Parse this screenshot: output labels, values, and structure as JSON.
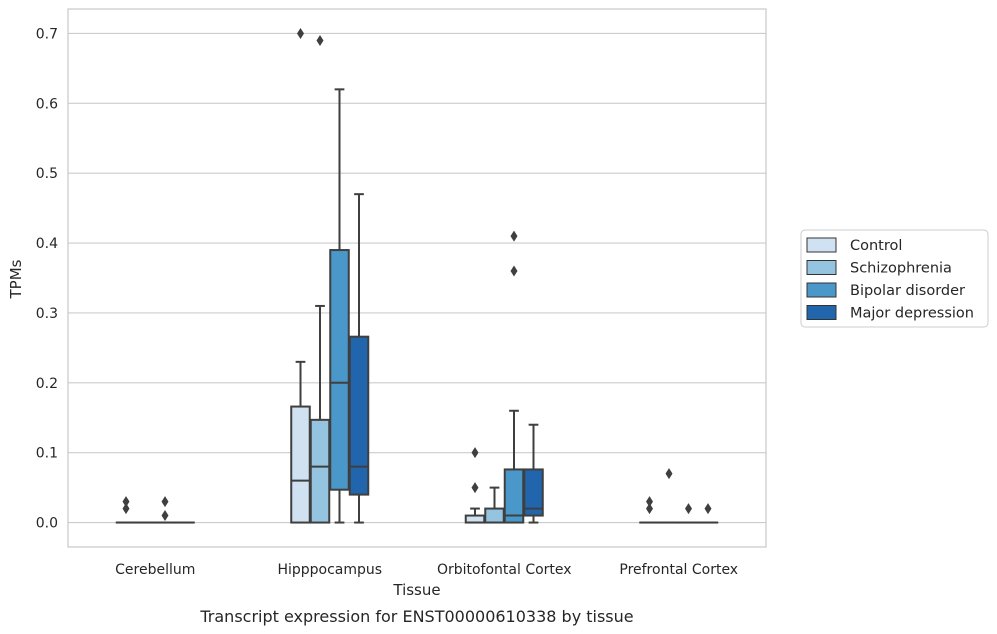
{
  "chart_data": {
    "type": "box",
    "caption": "Transcript expression for ENST00000610338 by tissue",
    "xlabel": "Tissue",
    "ylabel": "TPMs",
    "ylim": [
      -0.035,
      0.735
    ],
    "yticks": [
      0.0,
      0.1,
      0.2,
      0.3,
      0.4,
      0.5,
      0.6,
      0.7
    ],
    "ytick_labels": [
      "0.0",
      "0.1",
      "0.2",
      "0.3",
      "0.4",
      "0.5",
      "0.6",
      "0.7"
    ],
    "grid": true,
    "legend_position": "right",
    "categories": [
      "Cerebellum",
      "Hipppocampus",
      "Orbitofontal Cortex",
      "Prefrontal Cortex"
    ],
    "series": [
      {
        "name": "Control",
        "color": "#d0e1f2",
        "boxes": [
          {
            "whislo": 0,
            "q1": 0,
            "med": 0,
            "q3": 0,
            "whishi": 0,
            "fliers": [
              0.02,
              0.03
            ]
          },
          {
            "whislo": 0,
            "q1": 0,
            "med": 0.06,
            "q3": 0.166,
            "whishi": 0.23,
            "fliers": [
              0.7
            ]
          },
          {
            "whislo": 0,
            "q1": 0,
            "med": 0,
            "q3": 0.01,
            "whishi": 0.02,
            "fliers": [
              0.05,
              0.1
            ]
          },
          {
            "whislo": 0,
            "q1": 0,
            "med": 0,
            "q3": 0,
            "whishi": 0,
            "fliers": [
              0.02,
              0.03
            ]
          }
        ]
      },
      {
        "name": "Schizophrenia",
        "color": "#94c4df",
        "boxes": [
          {
            "whislo": 0,
            "q1": 0,
            "med": 0,
            "q3": 0,
            "whishi": 0,
            "fliers": []
          },
          {
            "whislo": 0,
            "q1": 0,
            "med": 0.08,
            "q3": 0.147,
            "whishi": 0.31,
            "fliers": [
              0.69
            ]
          },
          {
            "whislo": 0,
            "q1": 0,
            "med": 0,
            "q3": 0.02,
            "whishi": 0.05,
            "fliers": []
          },
          {
            "whislo": 0,
            "q1": 0,
            "med": 0,
            "q3": 0,
            "whishi": 0,
            "fliers": [
              0.07
            ]
          }
        ]
      },
      {
        "name": "Bipolar disorder",
        "color": "#4a98c9",
        "boxes": [
          {
            "whislo": 0,
            "q1": 0,
            "med": 0,
            "q3": 0,
            "whishi": 0,
            "fliers": [
              0.01,
              0.03
            ]
          },
          {
            "whislo": 0,
            "q1": 0.047,
            "med": 0.2,
            "q3": 0.39,
            "whishi": 0.62,
            "fliers": []
          },
          {
            "whislo": 0,
            "q1": 0,
            "med": 0.01,
            "q3": 0.076,
            "whishi": 0.16,
            "fliers": [
              0.36,
              0.41
            ]
          },
          {
            "whislo": 0,
            "q1": 0,
            "med": 0,
            "q3": 0,
            "whishi": 0,
            "fliers": [
              0.02
            ]
          }
        ]
      },
      {
        "name": "Major depression",
        "color": "#2166ac",
        "boxes": [
          {
            "whislo": 0,
            "q1": 0,
            "med": 0,
            "q3": 0,
            "whishi": 0,
            "fliers": []
          },
          {
            "whislo": 0,
            "q1": 0.04,
            "med": 0.08,
            "q3": 0.266,
            "whishi": 0.47,
            "fliers": []
          },
          {
            "whislo": 0,
            "q1": 0.01,
            "med": 0.02,
            "q3": 0.076,
            "whishi": 0.14,
            "fliers": []
          },
          {
            "whislo": 0,
            "q1": 0,
            "med": 0,
            "q3": 0,
            "whishi": 0,
            "fliers": [
              0.02
            ]
          }
        ]
      }
    ]
  }
}
